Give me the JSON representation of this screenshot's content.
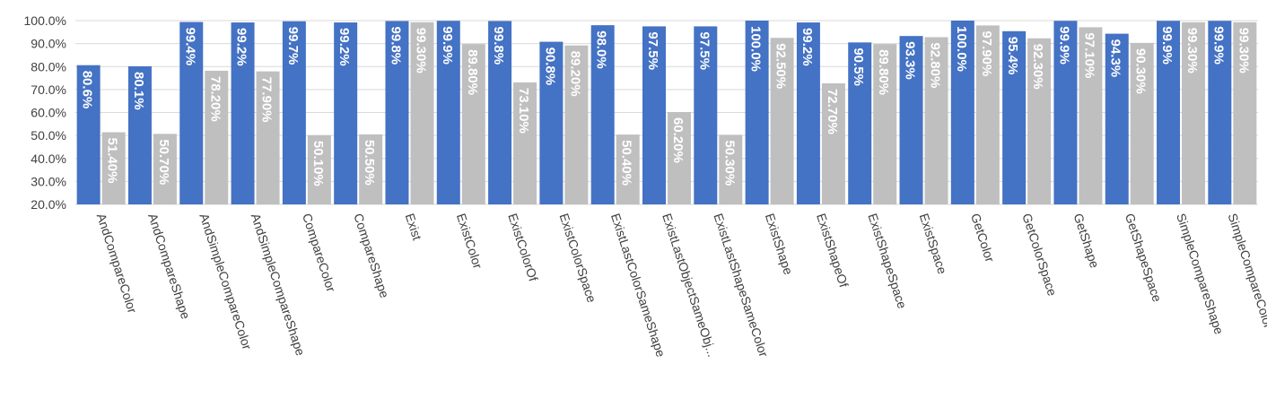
{
  "chart_data": {
    "type": "bar",
    "title": "",
    "xlabel": "",
    "ylabel": "",
    "ylim": [
      20,
      100
    ],
    "yticks": [
      "100.0%",
      "90.0%",
      "80.0%",
      "70.0%",
      "60.0%",
      "50.0%",
      "40.0%",
      "30.0%",
      "20.0%"
    ],
    "ytick_values": [
      100,
      90,
      80,
      70,
      60,
      50,
      40,
      30,
      20
    ],
    "grid": true,
    "legend": "none",
    "categories": [
      "AndCompareColor",
      "AndCompareShape",
      "AndSimpleCompareColor",
      "AndSimpleCompareShape",
      "CompareColor",
      "CompareShape",
      "Exist",
      "ExistColor",
      "ExistColorOf",
      "ExistColorSpace",
      "ExistLastColorSameShape",
      "ExistLastObjectSameObj...",
      "ExistLastShapeSameColor",
      "ExistShape",
      "ExistShapeOf",
      "ExistShapeSpace",
      "ExistSpace",
      "GetColor",
      "GetColorSpace",
      "GetShape",
      "GetShapeSpace",
      "SimpleCompareShape",
      "SimpleCompareColor"
    ],
    "series": [
      {
        "color": "#4472C4",
        "values": [
          80.6,
          80.1,
          99.4,
          99.2,
          99.7,
          99.2,
          99.8,
          99.9,
          99.8,
          90.8,
          98.0,
          97.5,
          97.5,
          100.0,
          99.2,
          90.5,
          93.3,
          100.0,
          95.4,
          99.9,
          94.3,
          99.9,
          99.9
        ],
        "labels": [
          "80.6%",
          "80.1%",
          "99.4%",
          "99.2%",
          "99.7%",
          "99.2%",
          "99.8%",
          "99.9%",
          "99.8%",
          "90.8%",
          "98.0%",
          "97.5%",
          "97.5%",
          "100.0%",
          "99.2%",
          "90.5%",
          "93.3%",
          "100.0%",
          "95.4%",
          "99.9%",
          "94.3%",
          "99.9%",
          "99.9%"
        ]
      },
      {
        "color": "#BFBFBF",
        "values": [
          51.4,
          50.7,
          78.2,
          77.9,
          50.1,
          50.5,
          99.3,
          89.8,
          73.1,
          89.2,
          50.4,
          60.2,
          50.3,
          92.5,
          72.7,
          89.8,
          92.8,
          97.9,
          92.3,
          97.1,
          90.3,
          99.3,
          99.3
        ],
        "labels": [
          "51.40%",
          "50.70%",
          "78.20%",
          "77.90%",
          "50.10%",
          "50.50%",
          "99.30%",
          "89.80%",
          "73.10%",
          "89.20%",
          "50.40%",
          "60.20%",
          "50.30%",
          "92.50%",
          "72.70%",
          "89.80%",
          "92.80%",
          "97.90%",
          "92.30%",
          "97.10%",
          "90.30%",
          "99.30%",
          "99.30%"
        ]
      }
    ]
  }
}
